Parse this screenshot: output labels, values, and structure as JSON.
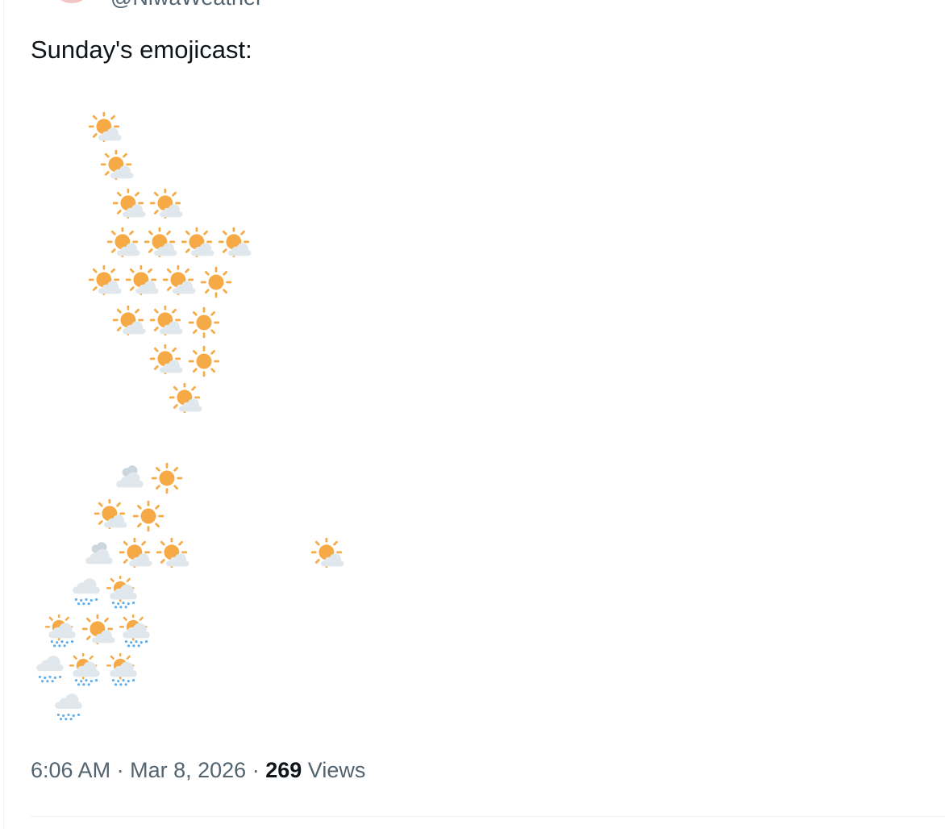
{
  "post": {
    "handle": "@NiwaWeather",
    "text": "Sunday's emojicast:",
    "time": "6:06 AM",
    "separator": "·",
    "date": "Mar 8, 2026",
    "views": 269,
    "views_label": "Views"
  }
}
